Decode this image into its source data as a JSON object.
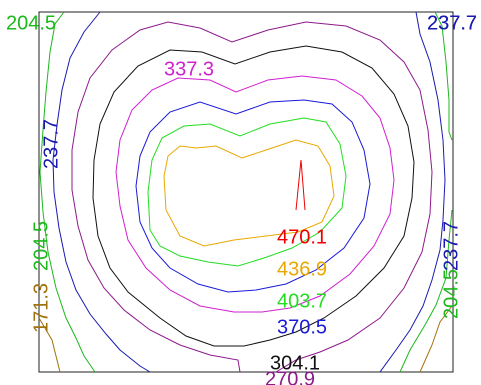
{
  "chart_data": {
    "type": "contour",
    "title": "",
    "xlabel": "",
    "ylabel": "",
    "levels": [
      {
        "value": 171.3,
        "label": "171.3",
        "color": "#a0720e"
      },
      {
        "value": 204.5,
        "label": "204.5",
        "color": "#1cb81c"
      },
      {
        "value": 237.7,
        "label": "237.7",
        "color": "#1a1ab0"
      },
      {
        "value": 270.9,
        "label": "270.9",
        "color": "#8c1a8c"
      },
      {
        "value": 304.1,
        "label": "304.1",
        "color": "#111111"
      },
      {
        "value": 337.3,
        "label": "337.3",
        "color": "#d020d0"
      },
      {
        "value": 370.5,
        "label": "370.5",
        "color": "#1a1ad8"
      },
      {
        "value": 403.7,
        "label": "403.7",
        "color": "#22dd22"
      },
      {
        "value": 436.9,
        "label": "436.9",
        "color": "#e8a800"
      },
      {
        "value": 470.1,
        "label": "470.1",
        "color": "#ee0000"
      }
    ],
    "contour_labels": [
      {
        "text": "204.5",
        "level": "204.5"
      },
      {
        "text": "237.7",
        "level": "237.7"
      },
      {
        "text": "237.7",
        "level": "237.7"
      },
      {
        "text": "337.3",
        "level": "337.3"
      },
      {
        "text": "237.7",
        "level": "237.7"
      },
      {
        "text": "204.5",
        "level": "204.5"
      },
      {
        "text": "171.3",
        "level": "171.3"
      },
      {
        "text": "237.7",
        "level": "237.7"
      },
      {
        "text": "204.5",
        "level": "204.5"
      },
      {
        "text": "470.1",
        "level": "470.1"
      },
      {
        "text": "436.9",
        "level": "436.9"
      },
      {
        "text": "403.7",
        "level": "403.7"
      },
      {
        "text": "370.5",
        "level": "370.5"
      },
      {
        "text": "304.1",
        "level": "304.1"
      },
      {
        "text": "270.9",
        "level": "270.9"
      }
    ],
    "grid": false,
    "legend": "none"
  }
}
